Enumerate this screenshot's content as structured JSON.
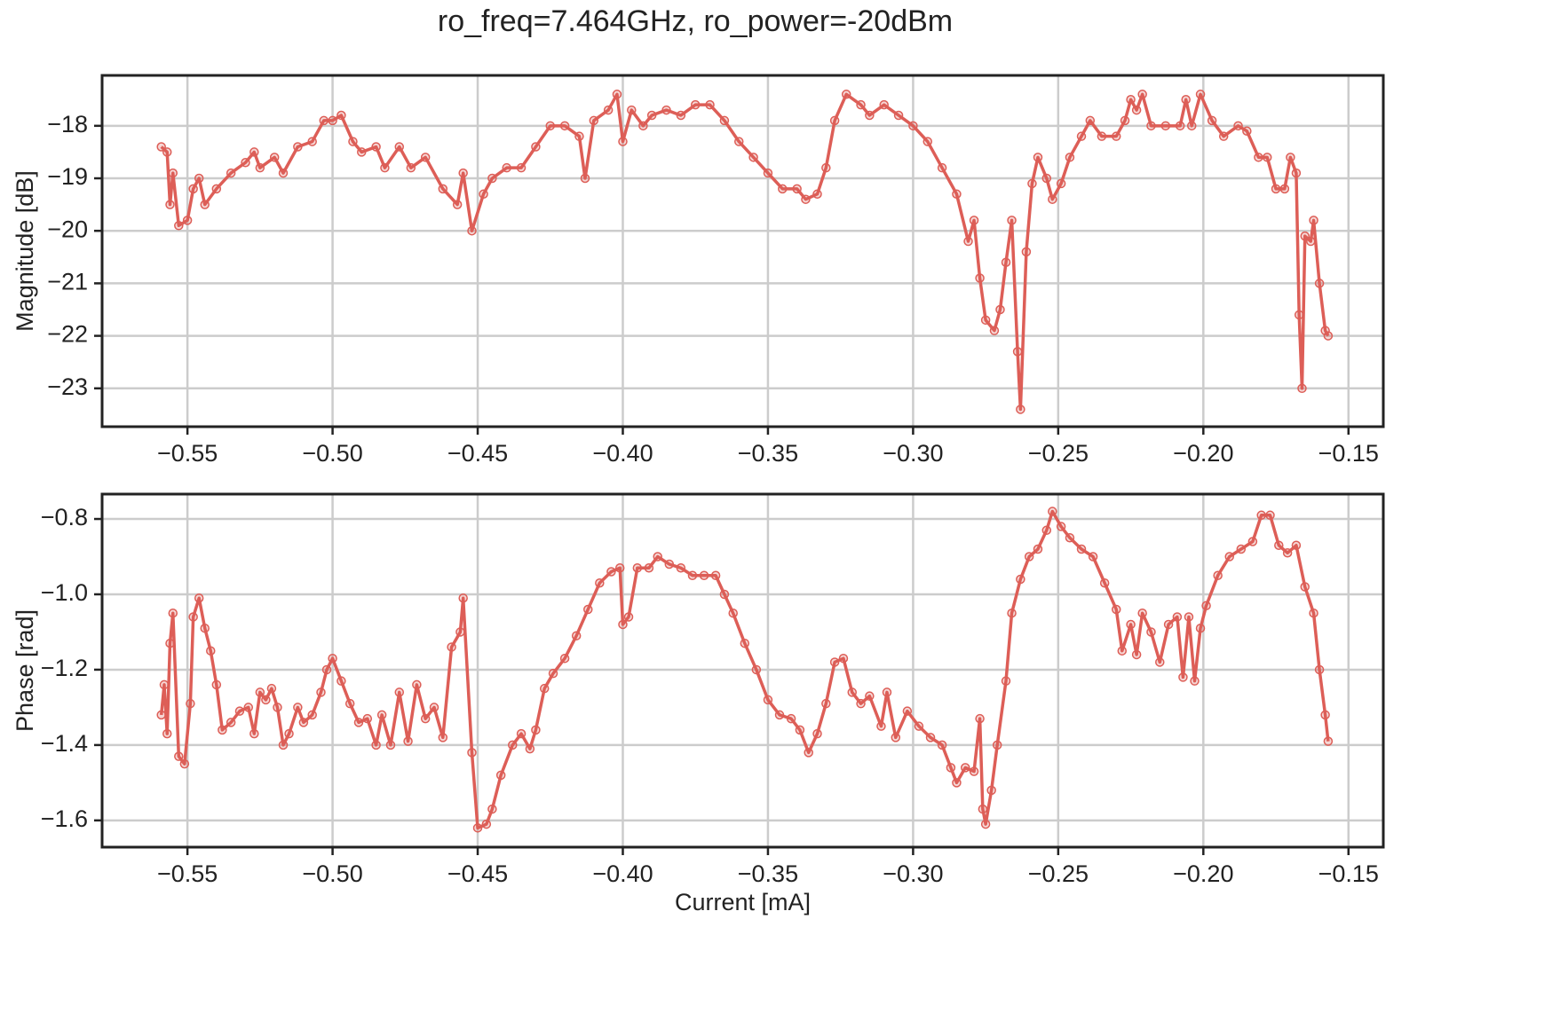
{
  "title": "ro_freq=7.464GHz, ro_power=-20dBm",
  "chart_data": [
    {
      "type": "line",
      "ylabel": "Magnitude [dB]",
      "color": "#dd5e57",
      "grid": true,
      "xlim": [
        -0.5794,
        -0.138
      ],
      "ylim": [
        -23.73,
        -17.04
      ],
      "xticks": [
        {
          "value": -0.55,
          "label": "−0.55"
        },
        {
          "value": -0.5,
          "label": "−0.50"
        },
        {
          "value": -0.45,
          "label": "−0.45"
        },
        {
          "value": -0.4,
          "label": "−0.40"
        },
        {
          "value": -0.35,
          "label": "−0.35"
        },
        {
          "value": -0.3,
          "label": "−0.30"
        },
        {
          "value": -0.25,
          "label": "−0.25"
        },
        {
          "value": -0.2,
          "label": "−0.20"
        },
        {
          "value": -0.15,
          "label": "−0.15"
        }
      ],
      "yticks": [
        {
          "value": -23,
          "label": "−23"
        },
        {
          "value": -22,
          "label": "−22"
        },
        {
          "value": -21,
          "label": "−21"
        },
        {
          "value": -20,
          "label": "−20"
        },
        {
          "value": -19,
          "label": "−19"
        },
        {
          "value": -18,
          "label": "−18"
        }
      ],
      "x": [
        -0.559,
        -0.557,
        -0.556,
        -0.555,
        -0.553,
        -0.55,
        -0.548,
        -0.546,
        -0.544,
        -0.54,
        -0.535,
        -0.53,
        -0.527,
        -0.525,
        -0.52,
        -0.517,
        -0.512,
        -0.507,
        -0.503,
        -0.5,
        -0.497,
        -0.493,
        -0.49,
        -0.485,
        -0.482,
        -0.477,
        -0.473,
        -0.468,
        -0.462,
        -0.457,
        -0.455,
        -0.452,
        -0.448,
        -0.445,
        -0.44,
        -0.435,
        -0.43,
        -0.425,
        -0.42,
        -0.415,
        -0.413,
        -0.41,
        -0.405,
        -0.402,
        -0.4,
        -0.397,
        -0.393,
        -0.39,
        -0.385,
        -0.38,
        -0.375,
        -0.37,
        -0.365,
        -0.36,
        -0.355,
        -0.35,
        -0.345,
        -0.34,
        -0.337,
        -0.333,
        -0.33,
        -0.327,
        -0.323,
        -0.318,
        -0.315,
        -0.31,
        -0.305,
        -0.3,
        -0.295,
        -0.29,
        -0.285,
        -0.281,
        -0.279,
        -0.277,
        -0.275,
        -0.272,
        -0.27,
        -0.268,
        -0.266,
        -0.264,
        -0.263,
        -0.261,
        -0.259,
        -0.257,
        -0.254,
        -0.252,
        -0.249,
        -0.246,
        -0.242,
        -0.239,
        -0.235,
        -0.23,
        -0.227,
        -0.225,
        -0.223,
        -0.221,
        -0.218,
        -0.213,
        -0.208,
        -0.206,
        -0.204,
        -0.201,
        -0.197,
        -0.193,
        -0.188,
        -0.185,
        -0.181,
        -0.178,
        -0.175,
        -0.172,
        -0.17,
        -0.168,
        -0.167,
        -0.166,
        -0.165,
        -0.163,
        -0.162,
        -0.16,
        -0.158,
        -0.157
      ],
      "values": [
        -18.4,
        -18.5,
        -19.5,
        -18.9,
        -19.9,
        -19.8,
        -19.2,
        -19.0,
        -19.5,
        -19.2,
        -18.9,
        -18.7,
        -18.5,
        -18.8,
        -18.6,
        -18.9,
        -18.4,
        -18.3,
        -17.9,
        -17.9,
        -17.8,
        -18.3,
        -18.5,
        -18.4,
        -18.8,
        -18.4,
        -18.8,
        -18.6,
        -19.2,
        -19.5,
        -18.9,
        -20.0,
        -19.3,
        -19.0,
        -18.8,
        -18.8,
        -18.4,
        -18.0,
        -18.0,
        -18.2,
        -19.0,
        -17.9,
        -17.7,
        -17.4,
        -18.3,
        -17.7,
        -18.0,
        -17.8,
        -17.7,
        -17.8,
        -17.6,
        -17.6,
        -17.9,
        -18.3,
        -18.6,
        -18.9,
        -19.2,
        -19.2,
        -19.4,
        -19.3,
        -18.8,
        -17.9,
        -17.4,
        -17.6,
        -17.8,
        -17.6,
        -17.8,
        -18.0,
        -18.3,
        -18.8,
        -19.3,
        -20.2,
        -19.8,
        -20.9,
        -21.7,
        -21.9,
        -21.5,
        -20.6,
        -19.8,
        -22.3,
        -23.4,
        -20.4,
        -19.1,
        -18.6,
        -19.0,
        -19.4,
        -19.1,
        -18.6,
        -18.2,
        -17.9,
        -18.2,
        -18.2,
        -17.9,
        -17.5,
        -17.7,
        -17.4,
        -18.0,
        -18.0,
        -18.0,
        -17.5,
        -18.0,
        -17.4,
        -17.9,
        -18.2,
        -18.0,
        -18.1,
        -18.6,
        -18.6,
        -19.2,
        -19.2,
        -18.6,
        -18.9,
        -21.6,
        -23.0,
        -20.1,
        -20.2,
        -19.8,
        -21.0,
        -21.9,
        -22.0
      ]
    },
    {
      "type": "line",
      "xlabel": "Current [mA]",
      "ylabel": "Phase [rad]",
      "color": "#dd5e57",
      "grid": true,
      "xlim": [
        -0.5794,
        -0.138
      ],
      "ylim": [
        -1.671,
        -0.734
      ],
      "xticks": [
        {
          "value": -0.55,
          "label": "−0.55"
        },
        {
          "value": -0.5,
          "label": "−0.50"
        },
        {
          "value": -0.45,
          "label": "−0.45"
        },
        {
          "value": -0.4,
          "label": "−0.40"
        },
        {
          "value": -0.35,
          "label": "−0.35"
        },
        {
          "value": -0.3,
          "label": "−0.30"
        },
        {
          "value": -0.25,
          "label": "−0.25"
        },
        {
          "value": -0.2,
          "label": "−0.20"
        },
        {
          "value": -0.15,
          "label": "−0.15"
        }
      ],
      "yticks": [
        {
          "value": -1.6,
          "label": "−1.6"
        },
        {
          "value": -1.4,
          "label": "−1.4"
        },
        {
          "value": -1.2,
          "label": "−1.2"
        },
        {
          "value": -1.0,
          "label": "−1.0"
        },
        {
          "value": -0.8,
          "label": "−0.8"
        }
      ],
      "x": [
        -0.559,
        -0.558,
        -0.557,
        -0.556,
        -0.555,
        -0.553,
        -0.551,
        -0.549,
        -0.548,
        -0.546,
        -0.544,
        -0.542,
        -0.54,
        -0.538,
        -0.535,
        -0.532,
        -0.529,
        -0.527,
        -0.525,
        -0.523,
        -0.521,
        -0.519,
        -0.517,
        -0.515,
        -0.512,
        -0.51,
        -0.507,
        -0.504,
        -0.502,
        -0.5,
        -0.497,
        -0.494,
        -0.491,
        -0.488,
        -0.485,
        -0.483,
        -0.48,
        -0.477,
        -0.474,
        -0.471,
        -0.468,
        -0.465,
        -0.462,
        -0.459,
        -0.456,
        -0.455,
        -0.452,
        -0.45,
        -0.447,
        -0.445,
        -0.442,
        -0.438,
        -0.435,
        -0.432,
        -0.43,
        -0.427,
        -0.424,
        -0.42,
        -0.416,
        -0.412,
        -0.408,
        -0.404,
        -0.401,
        -0.4,
        -0.398,
        -0.395,
        -0.391,
        -0.388,
        -0.384,
        -0.38,
        -0.376,
        -0.372,
        -0.368,
        -0.365,
        -0.362,
        -0.358,
        -0.354,
        -0.35,
        -0.346,
        -0.342,
        -0.339,
        -0.336,
        -0.333,
        -0.33,
        -0.327,
        -0.324,
        -0.321,
        -0.318,
        -0.315,
        -0.311,
        -0.309,
        -0.306,
        -0.302,
        -0.298,
        -0.294,
        -0.29,
        -0.287,
        -0.285,
        -0.282,
        -0.279,
        -0.277,
        -0.276,
        -0.275,
        -0.273,
        -0.271,
        -0.268,
        -0.266,
        -0.263,
        -0.26,
        -0.257,
        -0.254,
        -0.252,
        -0.249,
        -0.246,
        -0.242,
        -0.238,
        -0.234,
        -0.23,
        -0.228,
        -0.225,
        -0.223,
        -0.221,
        -0.218,
        -0.215,
        -0.212,
        -0.209,
        -0.207,
        -0.205,
        -0.203,
        -0.201,
        -0.199,
        -0.195,
        -0.191,
        -0.187,
        -0.183,
        -0.18,
        -0.177,
        -0.174,
        -0.171,
        -0.168,
        -0.165,
        -0.162,
        -0.16,
        -0.158,
        -0.157
      ],
      "values": [
        -1.32,
        -1.24,
        -1.37,
        -1.13,
        -1.05,
        -1.43,
        -1.45,
        -1.29,
        -1.06,
        -1.01,
        -1.09,
        -1.15,
        -1.24,
        -1.36,
        -1.34,
        -1.31,
        -1.3,
        -1.37,
        -1.26,
        -1.28,
        -1.25,
        -1.3,
        -1.4,
        -1.37,
        -1.3,
        -1.34,
        -1.32,
        -1.26,
        -1.2,
        -1.17,
        -1.23,
        -1.29,
        -1.34,
        -1.33,
        -1.4,
        -1.32,
        -1.4,
        -1.26,
        -1.39,
        -1.24,
        -1.33,
        -1.3,
        -1.38,
        -1.14,
        -1.1,
        -1.01,
        -1.42,
        -1.62,
        -1.61,
        -1.57,
        -1.48,
        -1.4,
        -1.37,
        -1.41,
        -1.36,
        -1.25,
        -1.21,
        -1.17,
        -1.11,
        -1.04,
        -0.97,
        -0.94,
        -0.93,
        -1.08,
        -1.06,
        -0.93,
        -0.93,
        -0.9,
        -0.92,
        -0.93,
        -0.95,
        -0.95,
        -0.95,
        -1.0,
        -1.05,
        -1.13,
        -1.2,
        -1.28,
        -1.32,
        -1.33,
        -1.36,
        -1.42,
        -1.37,
        -1.29,
        -1.18,
        -1.17,
        -1.26,
        -1.29,
        -1.27,
        -1.35,
        -1.26,
        -1.38,
        -1.31,
        -1.35,
        -1.38,
        -1.4,
        -1.46,
        -1.5,
        -1.46,
        -1.47,
        -1.33,
        -1.57,
        -1.61,
        -1.52,
        -1.4,
        -1.23,
        -1.05,
        -0.96,
        -0.9,
        -0.88,
        -0.83,
        -0.78,
        -0.82,
        -0.85,
        -0.88,
        -0.9,
        -0.97,
        -1.04,
        -1.15,
        -1.08,
        -1.16,
        -1.05,
        -1.1,
        -1.18,
        -1.08,
        -1.06,
        -1.22,
        -1.06,
        -1.23,
        -1.09,
        -1.03,
        -0.95,
        -0.9,
        -0.88,
        -0.86,
        -0.79,
        -0.79,
        -0.87,
        -0.89,
        -0.87,
        -0.98,
        -1.05,
        -1.2,
        -1.32,
        -1.39
      ]
    }
  ]
}
